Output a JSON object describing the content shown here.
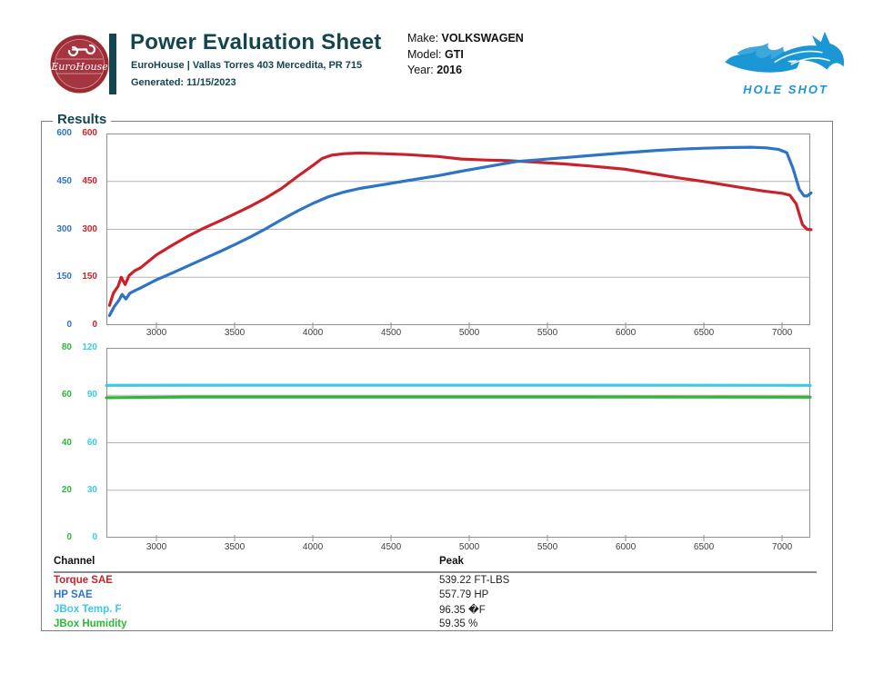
{
  "header": {
    "badge": {
      "brand_script": "EuroHouse"
    },
    "title": "Power Evaluation Sheet",
    "subtitle": "EuroHouse | Vallas Torres 403 Mercedita, PR 715",
    "generated": "Generated: 11/15/2023",
    "vehicle": {
      "make_label": "Make:",
      "make_value": "VOLKSWAGEN",
      "model_label": "Model:",
      "model_value": "GTI",
      "year_label": "Year:",
      "year_value": "2016"
    },
    "partner_logo": {
      "text": "HOLE SHOT"
    }
  },
  "results_title": "Results",
  "chart_data": [
    {
      "type": "line",
      "name": "torque-hp-vs-rpm-plot",
      "title": "",
      "xlabel": "",
      "xlim": [
        2680,
        7180
      ],
      "x_ticks": [
        3000,
        3500,
        4000,
        4500,
        5000,
        5500,
        6000,
        6500,
        7000
      ],
      "grid": "horizontal",
      "legend_position": "none",
      "y_axes": [
        {
          "name": "HP SAE",
          "color": "#2e74c4",
          "lim": [
            0,
            600
          ],
          "ticks": [
            0,
            150,
            300,
            450,
            600
          ]
        },
        {
          "name": "Torque SAE",
          "color": "#c9222b",
          "lim": [
            0,
            600
          ],
          "ticks": [
            0,
            150,
            300,
            450,
            600
          ]
        }
      ],
      "series": [
        {
          "name": "Torque SAE",
          "color": "#c9222b",
          "axis": 1,
          "peak": 539.22,
          "points": [
            [
              2700,
              62
            ],
            [
              2725,
              100
            ],
            [
              2755,
              122
            ],
            [
              2775,
              150
            ],
            [
              2800,
              127
            ],
            [
              2825,
              155
            ],
            [
              2860,
              170
            ],
            [
              2900,
              180
            ],
            [
              3000,
              220
            ],
            [
              3100,
              250
            ],
            [
              3200,
              278
            ],
            [
              3300,
              303
            ],
            [
              3400,
              325
            ],
            [
              3500,
              348
            ],
            [
              3600,
              372
            ],
            [
              3700,
              398
            ],
            [
              3800,
              428
            ],
            [
              3900,
              465
            ],
            [
              4000,
              500
            ],
            [
              4060,
              522
            ],
            [
              4120,
              532
            ],
            [
              4200,
              537
            ],
            [
              4300,
              539
            ],
            [
              4450,
              537
            ],
            [
              4600,
              534
            ],
            [
              4800,
              528
            ],
            [
              4950,
              520
            ],
            [
              5100,
              517
            ],
            [
              5250,
              515
            ],
            [
              5400,
              511
            ],
            [
              5600,
              505
            ],
            [
              5800,
              497
            ],
            [
              6000,
              488
            ],
            [
              6200,
              472
            ],
            [
              6350,
              460
            ],
            [
              6500,
              450
            ],
            [
              6700,
              434
            ],
            [
              6880,
              420
            ],
            [
              7000,
              413
            ],
            [
              7050,
              407
            ],
            [
              7090,
              380
            ],
            [
              7130,
              315
            ],
            [
              7160,
              300
            ],
            [
              7185,
              299
            ]
          ]
        },
        {
          "name": "HP SAE",
          "color": "#2e74c4",
          "axis": 0,
          "peak": 557.79,
          "points": [
            [
              2700,
              30
            ],
            [
              2730,
              58
            ],
            [
              2760,
              78
            ],
            [
              2780,
              96
            ],
            [
              2805,
              82
            ],
            [
              2830,
              100
            ],
            [
              2870,
              110
            ],
            [
              2900,
              117
            ],
            [
              3000,
              142
            ],
            [
              3100,
              163
            ],
            [
              3200,
              185
            ],
            [
              3300,
              207
            ],
            [
              3400,
              229
            ],
            [
              3500,
              252
            ],
            [
              3600,
              276
            ],
            [
              3700,
              302
            ],
            [
              3800,
              330
            ],
            [
              3900,
              357
            ],
            [
              4000,
              381
            ],
            [
              4100,
              402
            ],
            [
              4200,
              417
            ],
            [
              4300,
              428
            ],
            [
              4450,
              440
            ],
            [
              4600,
              452
            ],
            [
              4800,
              468
            ],
            [
              4950,
              482
            ],
            [
              5100,
              495
            ],
            [
              5300,
              512
            ],
            [
              5450,
              518
            ],
            [
              5600,
              524
            ],
            [
              5800,
              532
            ],
            [
              6000,
              540
            ],
            [
              6200,
              547
            ],
            [
              6350,
              551
            ],
            [
              6500,
              554
            ],
            [
              6650,
              556
            ],
            [
              6800,
              557
            ],
            [
              6900,
              555
            ],
            [
              6980,
              550
            ],
            [
              7030,
              540
            ],
            [
              7070,
              490
            ],
            [
              7110,
              425
            ],
            [
              7140,
              405
            ],
            [
              7160,
              404
            ],
            [
              7185,
              414
            ]
          ]
        }
      ]
    },
    {
      "type": "line",
      "name": "jbox-environment-vs-rpm-plot",
      "title": "",
      "xlabel": "",
      "xlim": [
        2680,
        7180
      ],
      "x_ticks": [
        3000,
        3500,
        4000,
        4500,
        5000,
        5500,
        6000,
        6500,
        7000
      ],
      "grid": "horizontal",
      "legend_position": "none",
      "y_axes": [
        {
          "name": "JBox Humidity",
          "color": "#2eb837",
          "lim": [
            0,
            80
          ],
          "ticks": [
            0,
            20,
            40,
            60,
            80
          ]
        },
        {
          "name": "JBox Temp. F",
          "color": "#3bc9e8",
          "lim": [
            0,
            120
          ],
          "ticks": [
            0,
            30,
            60,
            90,
            120
          ]
        }
      ],
      "series": [
        {
          "name": "JBox Temp. F",
          "color": "#3bc9e8",
          "axis": 1,
          "peak": 96.35,
          "points": [
            [
              2680,
              96.3
            ],
            [
              3500,
              96.4
            ],
            [
              5500,
              96.4
            ],
            [
              7180,
              96.3
            ]
          ]
        },
        {
          "name": "JBox Humidity",
          "color": "#2eb837",
          "axis": 0,
          "peak": 59.35,
          "points": [
            [
              2680,
              59.0
            ],
            [
              3200,
              59.3
            ],
            [
              5500,
              59.3
            ],
            [
              7180,
              59.2
            ]
          ]
        }
      ]
    }
  ],
  "peak_table": {
    "headers": [
      "Channel",
      "Peak"
    ],
    "rows": [
      {
        "channel": "Torque SAE",
        "color": "#c9222b",
        "peak": "539.22 FT-LBS"
      },
      {
        "channel": "HP SAE",
        "color": "#2e74c4",
        "peak": "557.79 HP"
      },
      {
        "channel": "JBox Temp. F",
        "color": "#3bc9e8",
        "peak": "96.35 �F"
      },
      {
        "channel": "JBox Humidity",
        "color": "#2eb837",
        "peak": "59.35 %"
      }
    ]
  },
  "colors": {
    "accent_teal": "#14454e",
    "badge_red": "#9e2b33",
    "holeshot_blue": "#1b96d5",
    "torque_red": "#c9222b",
    "hp_blue": "#2e74c4",
    "temp_cyan": "#3bc9e8",
    "humidity_green": "#2eb837",
    "grid_gray": "#b3b3b3",
    "frame_gray": "#8f8f8f"
  }
}
